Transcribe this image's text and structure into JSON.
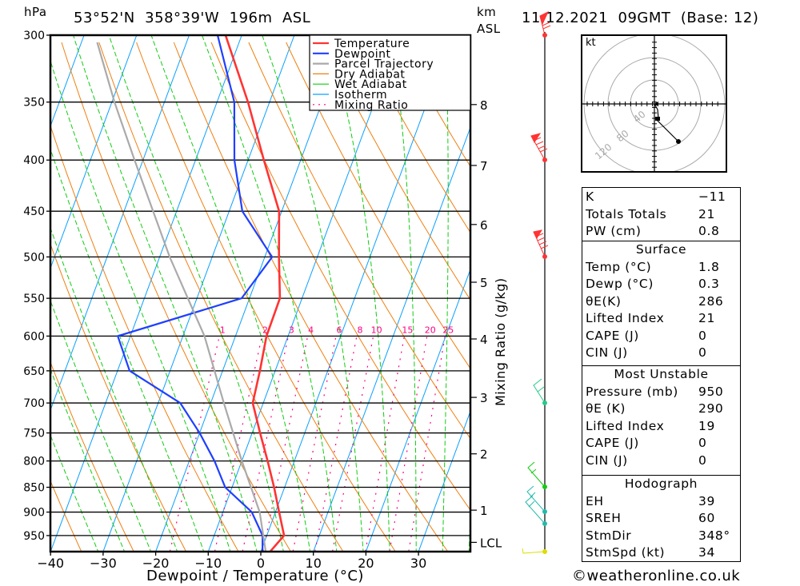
{
  "header": {
    "pressure_unit": "hPa",
    "location": "53°52'N  358°39'W  196m  ASL",
    "km_unit": "km",
    "asl_label": "ASL",
    "datetime": "11.12.2021  09GMT  (Base: 12)"
  },
  "legend": [
    {
      "label": "Temperature",
      "color": "#ff3333",
      "style": "solid"
    },
    {
      "label": "Dewpoint",
      "color": "#1f3fff",
      "style": "solid"
    },
    {
      "label": "Parcel Trajectory",
      "color": "#aaaaaa",
      "style": "solid"
    },
    {
      "label": "Dry Adiabat",
      "color": "#f07f10",
      "style": "solid"
    },
    {
      "label": "Wet Adiabat",
      "color": "#11cc11",
      "style": "solid"
    },
    {
      "label": "Isotherm",
      "color": "#0aa0ff",
      "style": "solid"
    },
    {
      "label": "Mixing Ratio",
      "color": "#ff0080",
      "style": "dotted"
    }
  ],
  "chart_data": {
    "type": "line",
    "title": "53°52'N 358°39'W 196m ASL skew-T log-p",
    "xlabel": "Dewpoint / Temperature (°C)",
    "ylabel": "hPa",
    "right_axis_label": "Mixing Ratio (g/kg)",
    "x_ticks": [
      -40,
      -30,
      -20,
      -10,
      0,
      10,
      20,
      30
    ],
    "x_tick_labels": [
      "−40",
      "−30",
      "−20",
      "−10",
      "0",
      "10",
      "20",
      "30"
    ],
    "pressure_levels": [
      300,
      350,
      400,
      450,
      500,
      550,
      600,
      650,
      700,
      750,
      800,
      850,
      900,
      950
    ],
    "pressure_range": [
      300,
      985
    ],
    "height_ticks": [
      {
        "label": "8",
        "pressure_hpa": 352
      },
      {
        "label": "7",
        "pressure_hpa": 405
      },
      {
        "label": "6",
        "pressure_hpa": 464
      },
      {
        "label": "5",
        "pressure_hpa": 530
      },
      {
        "label": "4",
        "pressure_hpa": 604
      },
      {
        "label": "3",
        "pressure_hpa": 691
      },
      {
        "label": "2",
        "pressure_hpa": 787
      },
      {
        "label": "1",
        "pressure_hpa": 896
      },
      {
        "label": "LCL",
        "pressure_hpa": 965
      }
    ],
    "mixing_ratios": [
      1,
      2,
      3,
      4,
      6,
      8,
      10,
      15,
      20,
      25
    ],
    "mixing_ratio_labels": [
      "1",
      "2",
      "3",
      "4",
      "6",
      "8",
      "10",
      "15",
      "20",
      "25"
    ],
    "series": [
      {
        "name": "Temperature",
        "pressure": [
          985,
          950,
          900,
          850,
          800,
          750,
          700,
          650,
          600,
          550,
          500,
          450,
          400,
          350,
          300
        ],
        "values": [
          1.8,
          3.3,
          0.7,
          -2.0,
          -5.1,
          -8.5,
          -12.0,
          -12.9,
          -14.1,
          -14.2,
          -17.3,
          -20.5,
          -27.0,
          -34.1,
          -43.1
        ]
      },
      {
        "name": "Dewpoint",
        "pressure": [
          985,
          950,
          900,
          850,
          800,
          750,
          700,
          650,
          600,
          550,
          500,
          450,
          400,
          350,
          300
        ],
        "values": [
          0.3,
          -0.8,
          -4.5,
          -11.3,
          -15.2,
          -20.0,
          -25.8,
          -37.7,
          -42.4,
          -21.5,
          -18.6,
          -27.5,
          -32.6,
          -36.7,
          -44.6
        ]
      },
      {
        "name": "Parcel Trajectory",
        "pressure": [
          985,
          900,
          800,
          700,
          600,
          500,
          400,
          350,
          305
        ],
        "values": [
          0.9,
          -3.0,
          -10.0,
          -17.5,
          -25.9,
          -38.1,
          -51.6,
          -59.5,
          -67.0
        ]
      }
    ]
  },
  "hodograph": {
    "unit_label": "kt",
    "ring_labels": [
      "40",
      "80",
      "120"
    ]
  },
  "indices": {
    "general": [
      {
        "label": "K",
        "value": "−11"
      },
      {
        "label": "Totals Totals",
        "value": "21"
      },
      {
        "label": "PW (cm)",
        "value": "0.8"
      }
    ],
    "surface": {
      "title": "Surface",
      "rows": [
        {
          "label": "Temp (°C)",
          "value": "1.8"
        },
        {
          "label": "Dewp (°C)",
          "value": "0.3"
        },
        {
          "label": "θE(K)",
          "value": "286"
        },
        {
          "label": "Lifted Index",
          "value": "21"
        },
        {
          "label": "CAPE (J)",
          "value": "0"
        },
        {
          "label": "CIN (J)",
          "value": "0"
        }
      ]
    },
    "most_unstable": {
      "title": "Most Unstable",
      "rows": [
        {
          "label": "Pressure (mb)",
          "value": "950"
        },
        {
          "label": "θE (K)",
          "value": "290"
        },
        {
          "label": "Lifted Index",
          "value": "19"
        },
        {
          "label": "CAPE (J)",
          "value": "0"
        },
        {
          "label": "CIN (J)",
          "value": "0"
        }
      ]
    },
    "hodograph": {
      "title": "Hodograph",
      "rows": [
        {
          "label": "EH",
          "value": "39"
        },
        {
          "label": "SREH",
          "value": "60"
        },
        {
          "label": "StmDir",
          "value": "348°"
        },
        {
          "label": "StmSpd (kt)",
          "value": "34"
        }
      ]
    }
  },
  "footer": "©weatheronline.co.uk"
}
